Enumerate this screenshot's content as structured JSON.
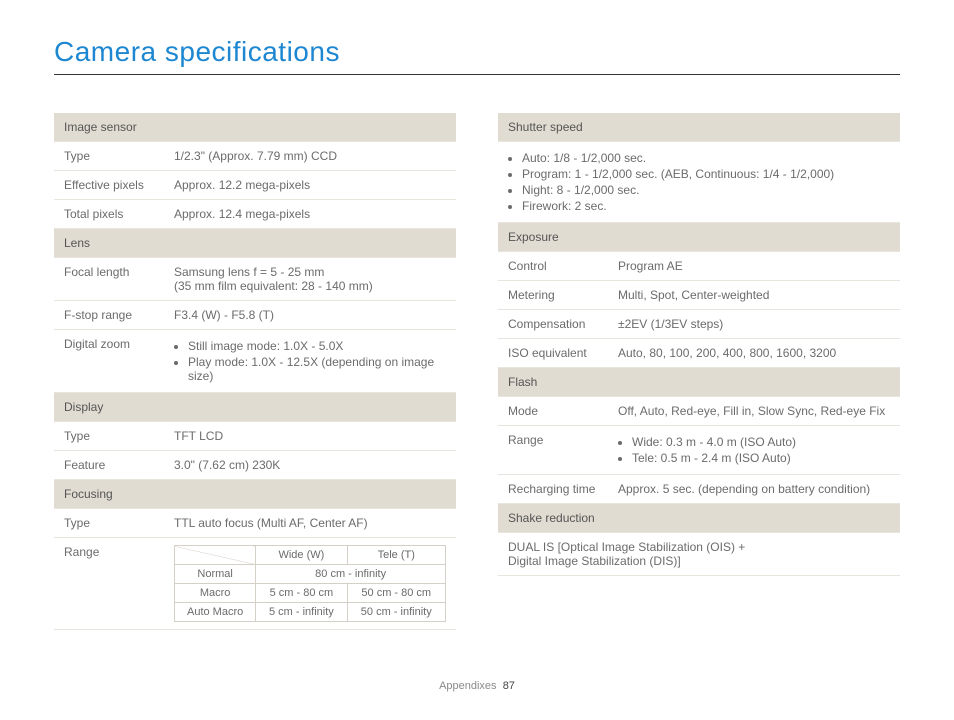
{
  "page": {
    "title": "Camera specifications",
    "footer_label": "Appendixes",
    "page_number": "87"
  },
  "left": {
    "image_sensor": {
      "header": "Image sensor",
      "type_label": "Type",
      "type_value": "1/2.3\" (Approx. 7.79 mm) CCD",
      "eff_label": "Effective pixels",
      "eff_value": "Approx. 12.2 mega-pixels",
      "total_label": "Total pixels",
      "total_value": "Approx. 12.4 mega-pixels"
    },
    "lens": {
      "header": "Lens",
      "focal_label": "Focal length",
      "focal_value_l1": "Samsung lens f = 5 - 25 mm",
      "focal_value_l2": "(35 mm film equivalent: 28 - 140 mm)",
      "fstop_label": "F-stop range",
      "fstop_value": "F3.4 (W) - F5.8 (T)",
      "zoom_label": "Digital zoom",
      "zoom_b1": "Still image mode: 1.0X - 5.0X",
      "zoom_b2": "Play mode: 1.0X - 12.5X (depending on image size)"
    },
    "display": {
      "header": "Display",
      "type_label": "Type",
      "type_value": "TFT LCD",
      "feature_label": "Feature",
      "feature_value": "3.0\" (7.62 cm) 230K"
    },
    "focusing": {
      "header": "Focusing",
      "type_label": "Type",
      "type_value": "TTL auto focus (Multi AF, Center AF)",
      "range_label": "Range",
      "inner": {
        "wide_h": "Wide (W)",
        "tele_h": "Tele (T)",
        "normal_l": "Normal",
        "normal_v": "80 cm - infinity",
        "macro_l": "Macro",
        "macro_w": "5 cm - 80 cm",
        "macro_t": "50 cm - 80 cm",
        "auto_l": "Auto Macro",
        "auto_w": "5 cm - infinity",
        "auto_t": "50 cm - infinity"
      }
    }
  },
  "right": {
    "shutter": {
      "header": "Shutter speed",
      "b1": "Auto: 1/8 - 1/2,000 sec.",
      "b2": "Program: 1 - 1/2,000 sec. (AEB, Continuous: 1/4 - 1/2,000)",
      "b3": "Night: 8 - 1/2,000 sec.",
      "b4": "Firework: 2 sec."
    },
    "exposure": {
      "header": "Exposure",
      "control_l": "Control",
      "control_v": "Program AE",
      "metering_l": "Metering",
      "metering_v": "Multi, Spot, Center-weighted",
      "comp_l": "Compensation",
      "comp_v": "±2EV (1/3EV steps)",
      "iso_l": "ISO equivalent",
      "iso_v": "Auto, 80, 100, 200, 400, 800, 1600, 3200"
    },
    "flash": {
      "header": "Flash",
      "mode_l": "Mode",
      "mode_v": "Off, Auto, Red-eye, Fill in, Slow Sync, Red-eye Fix",
      "range_l": "Range",
      "range_b1": "Wide: 0.3 m - 4.0 m (ISO Auto)",
      "range_b2": "Tele: 0.5 m - 2.4 m (ISO Auto)",
      "recharge_l": "Recharging time",
      "recharge_v": "Approx. 5 sec. (depending on battery condition)"
    },
    "shake": {
      "header": "Shake reduction",
      "value_l1": "DUAL IS [Optical Image Stabilization (OIS) +",
      "value_l2": "Digital Image Stabilization (DIS)]"
    }
  }
}
